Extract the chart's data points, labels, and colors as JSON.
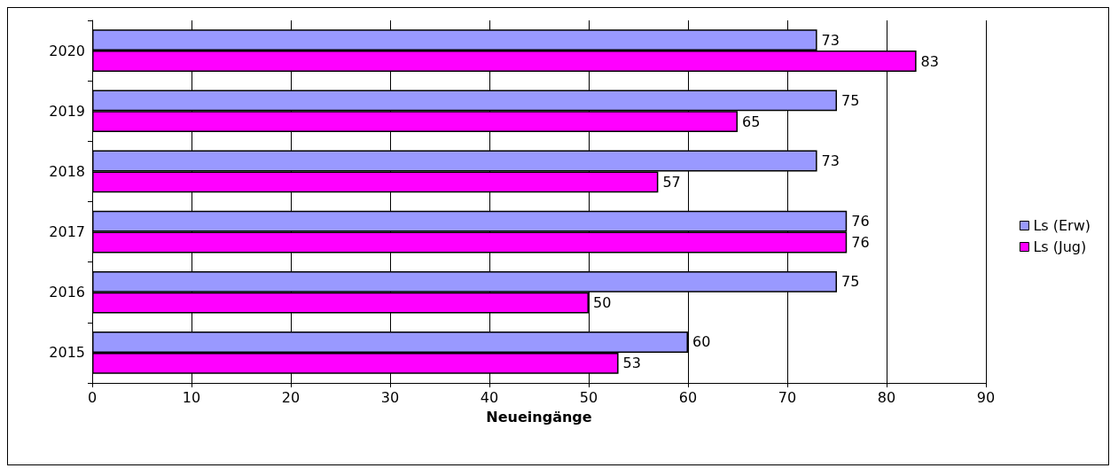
{
  "chart_data": {
    "type": "bar",
    "orientation": "horizontal",
    "xlabel": "Neueingänge",
    "categories": [
      "2020",
      "2019",
      "2018",
      "2017",
      "2016",
      "2015"
    ],
    "series": [
      {
        "name": "Ls (Erw)",
        "color": "#9999ff",
        "values": [
          73,
          75,
          73,
          76,
          75,
          60
        ]
      },
      {
        "name": "Ls (Jug)",
        "color": "#ff00ff",
        "values": [
          83,
          65,
          57,
          76,
          50,
          53
        ]
      }
    ],
    "xlim": [
      0,
      90
    ],
    "xticks": [
      0,
      10,
      20,
      30,
      40,
      50,
      60,
      70,
      80,
      90
    ],
    "grid": "x",
    "legend": "right",
    "data_labels": true
  }
}
